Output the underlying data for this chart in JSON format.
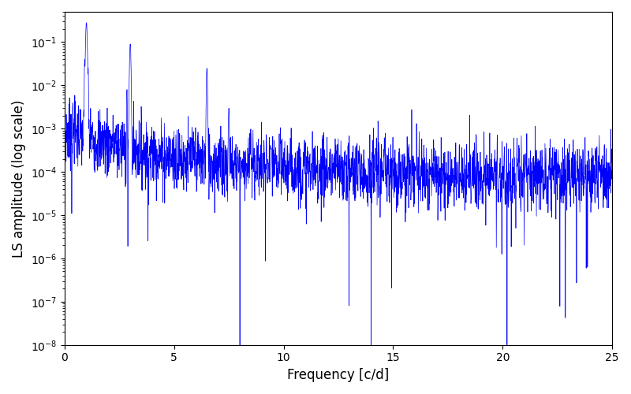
{
  "xlabel": "Frequency [c/d]",
  "ylabel": "LS amplitude (log scale)",
  "xlim": [
    0,
    25
  ],
  "ylim": [
    1e-08,
    0.5
  ],
  "line_color": "#0000ff",
  "line_width": 0.5,
  "background_color": "#ffffff",
  "figsize": [
    8.0,
    5.0
  ],
  "dpi": 100,
  "freq_max": 25.0,
  "n_points": 2500,
  "seed": 7
}
